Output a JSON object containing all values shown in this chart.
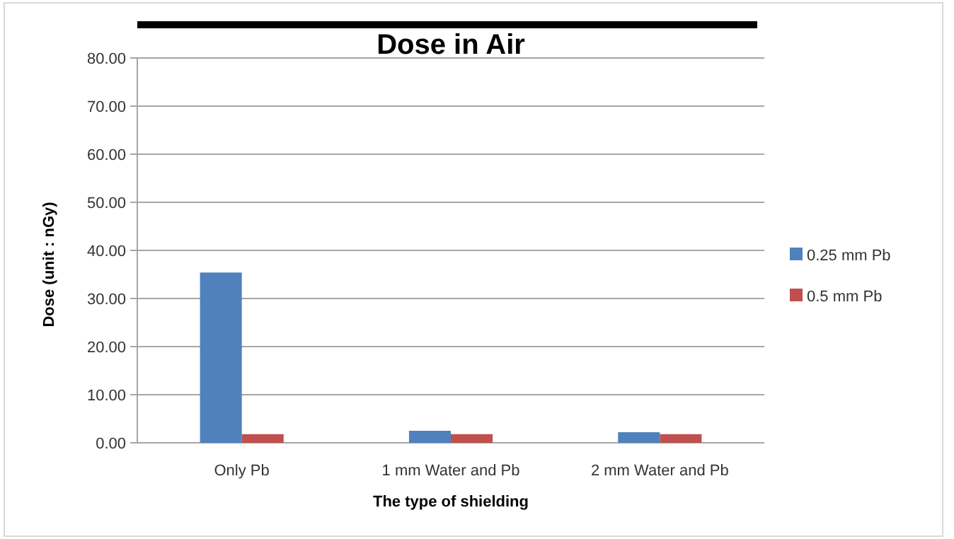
{
  "chart_data": {
    "type": "bar",
    "title": "Dose in Air",
    "xlabel": "The type of shielding",
    "ylabel": "Dose (unit : nGy)",
    "categories": [
      "Only Pb",
      "1 mm Water and Pb",
      "2 mm Water and Pb"
    ],
    "series": [
      {
        "name": "0.25 mm Pb",
        "color": "#4f81bd",
        "values": [
          35.4,
          2.5,
          2.2
        ]
      },
      {
        "name": "0.5 mm Pb",
        "color": "#c0504d",
        "values": [
          1.8,
          1.8,
          1.8
        ]
      }
    ],
    "ylim": [
      0,
      80
    ],
    "yticks": [
      {
        "value": 0,
        "label": "0.00"
      },
      {
        "value": 10,
        "label": "10.00"
      },
      {
        "value": 20,
        "label": "20.00"
      },
      {
        "value": 30,
        "label": "30.00"
      },
      {
        "value": 40,
        "label": "40.00"
      },
      {
        "value": 50,
        "label": "50.00"
      },
      {
        "value": 60,
        "label": "60.00"
      },
      {
        "value": 70,
        "label": "70.00"
      },
      {
        "value": 80,
        "label": "80.00"
      }
    ],
    "grid": "y",
    "legend": "right"
  }
}
